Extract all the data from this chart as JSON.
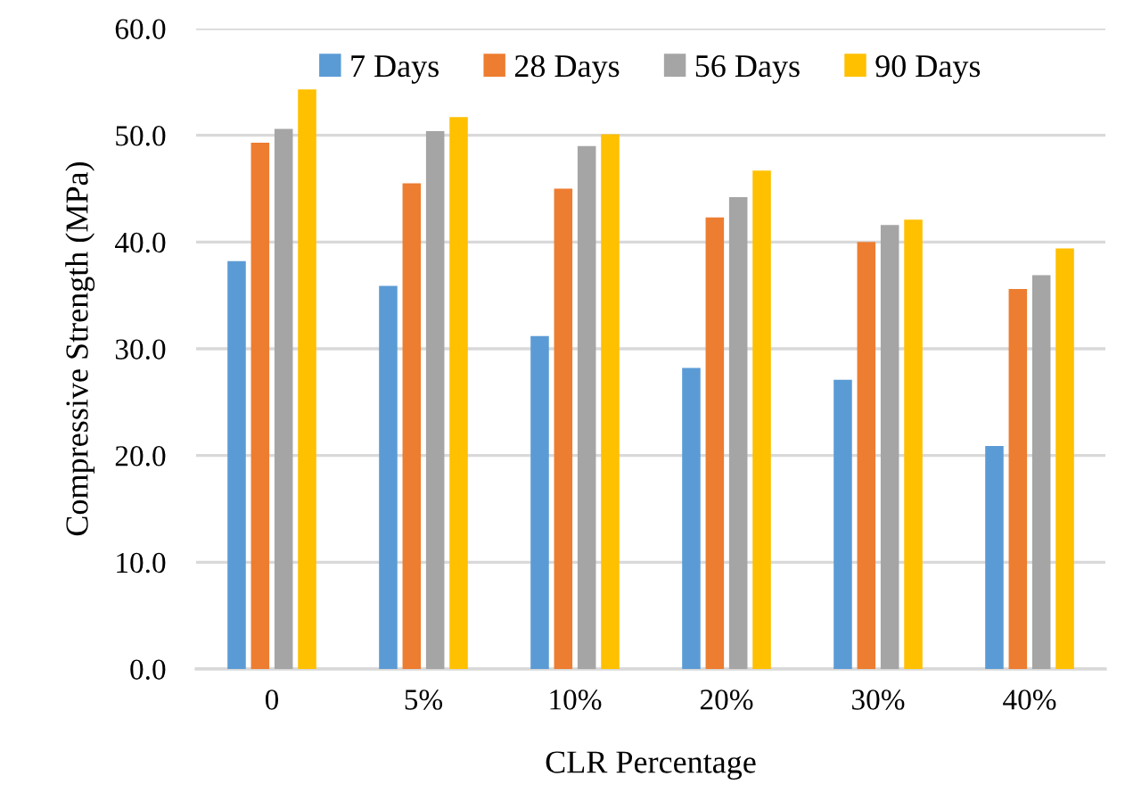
{
  "chart_data": {
    "type": "bar",
    "xlabel": "CLR Percentage",
    "ylabel": "Compressive Strength (MPa)",
    "categories": [
      "0",
      "5%",
      "10%",
      "20%",
      "30%",
      "40%"
    ],
    "series": [
      {
        "name": "7 Days",
        "color": "#5b9bd5",
        "values": [
          38.2,
          35.9,
          31.2,
          28.2,
          27.1,
          20.9
        ]
      },
      {
        "name": "28 Days",
        "color": "#ed7d31",
        "values": [
          49.3,
          45.5,
          45.0,
          42.3,
          40.0,
          35.6
        ]
      },
      {
        "name": "56 Days",
        "color": "#a5a5a5",
        "values": [
          50.6,
          50.4,
          49.0,
          44.2,
          41.6,
          36.9
        ]
      },
      {
        "name": "90 Days",
        "color": "#ffc000",
        "values": [
          54.3,
          51.7,
          50.1,
          46.7,
          42.1,
          39.4
        ]
      }
    ],
    "ylim": [
      0,
      60
    ],
    "yticks": [
      {
        "value": 0,
        "label": "0.0"
      },
      {
        "value": 10,
        "label": "10.0"
      },
      {
        "value": 20,
        "label": "20.0"
      },
      {
        "value": 30,
        "label": "30.0"
      },
      {
        "value": 40,
        "label": "40.0"
      },
      {
        "value": 50,
        "label": "50.0"
      },
      {
        "value": 60,
        "label": "60.0"
      }
    ],
    "grid": "y",
    "legend": "top"
  }
}
